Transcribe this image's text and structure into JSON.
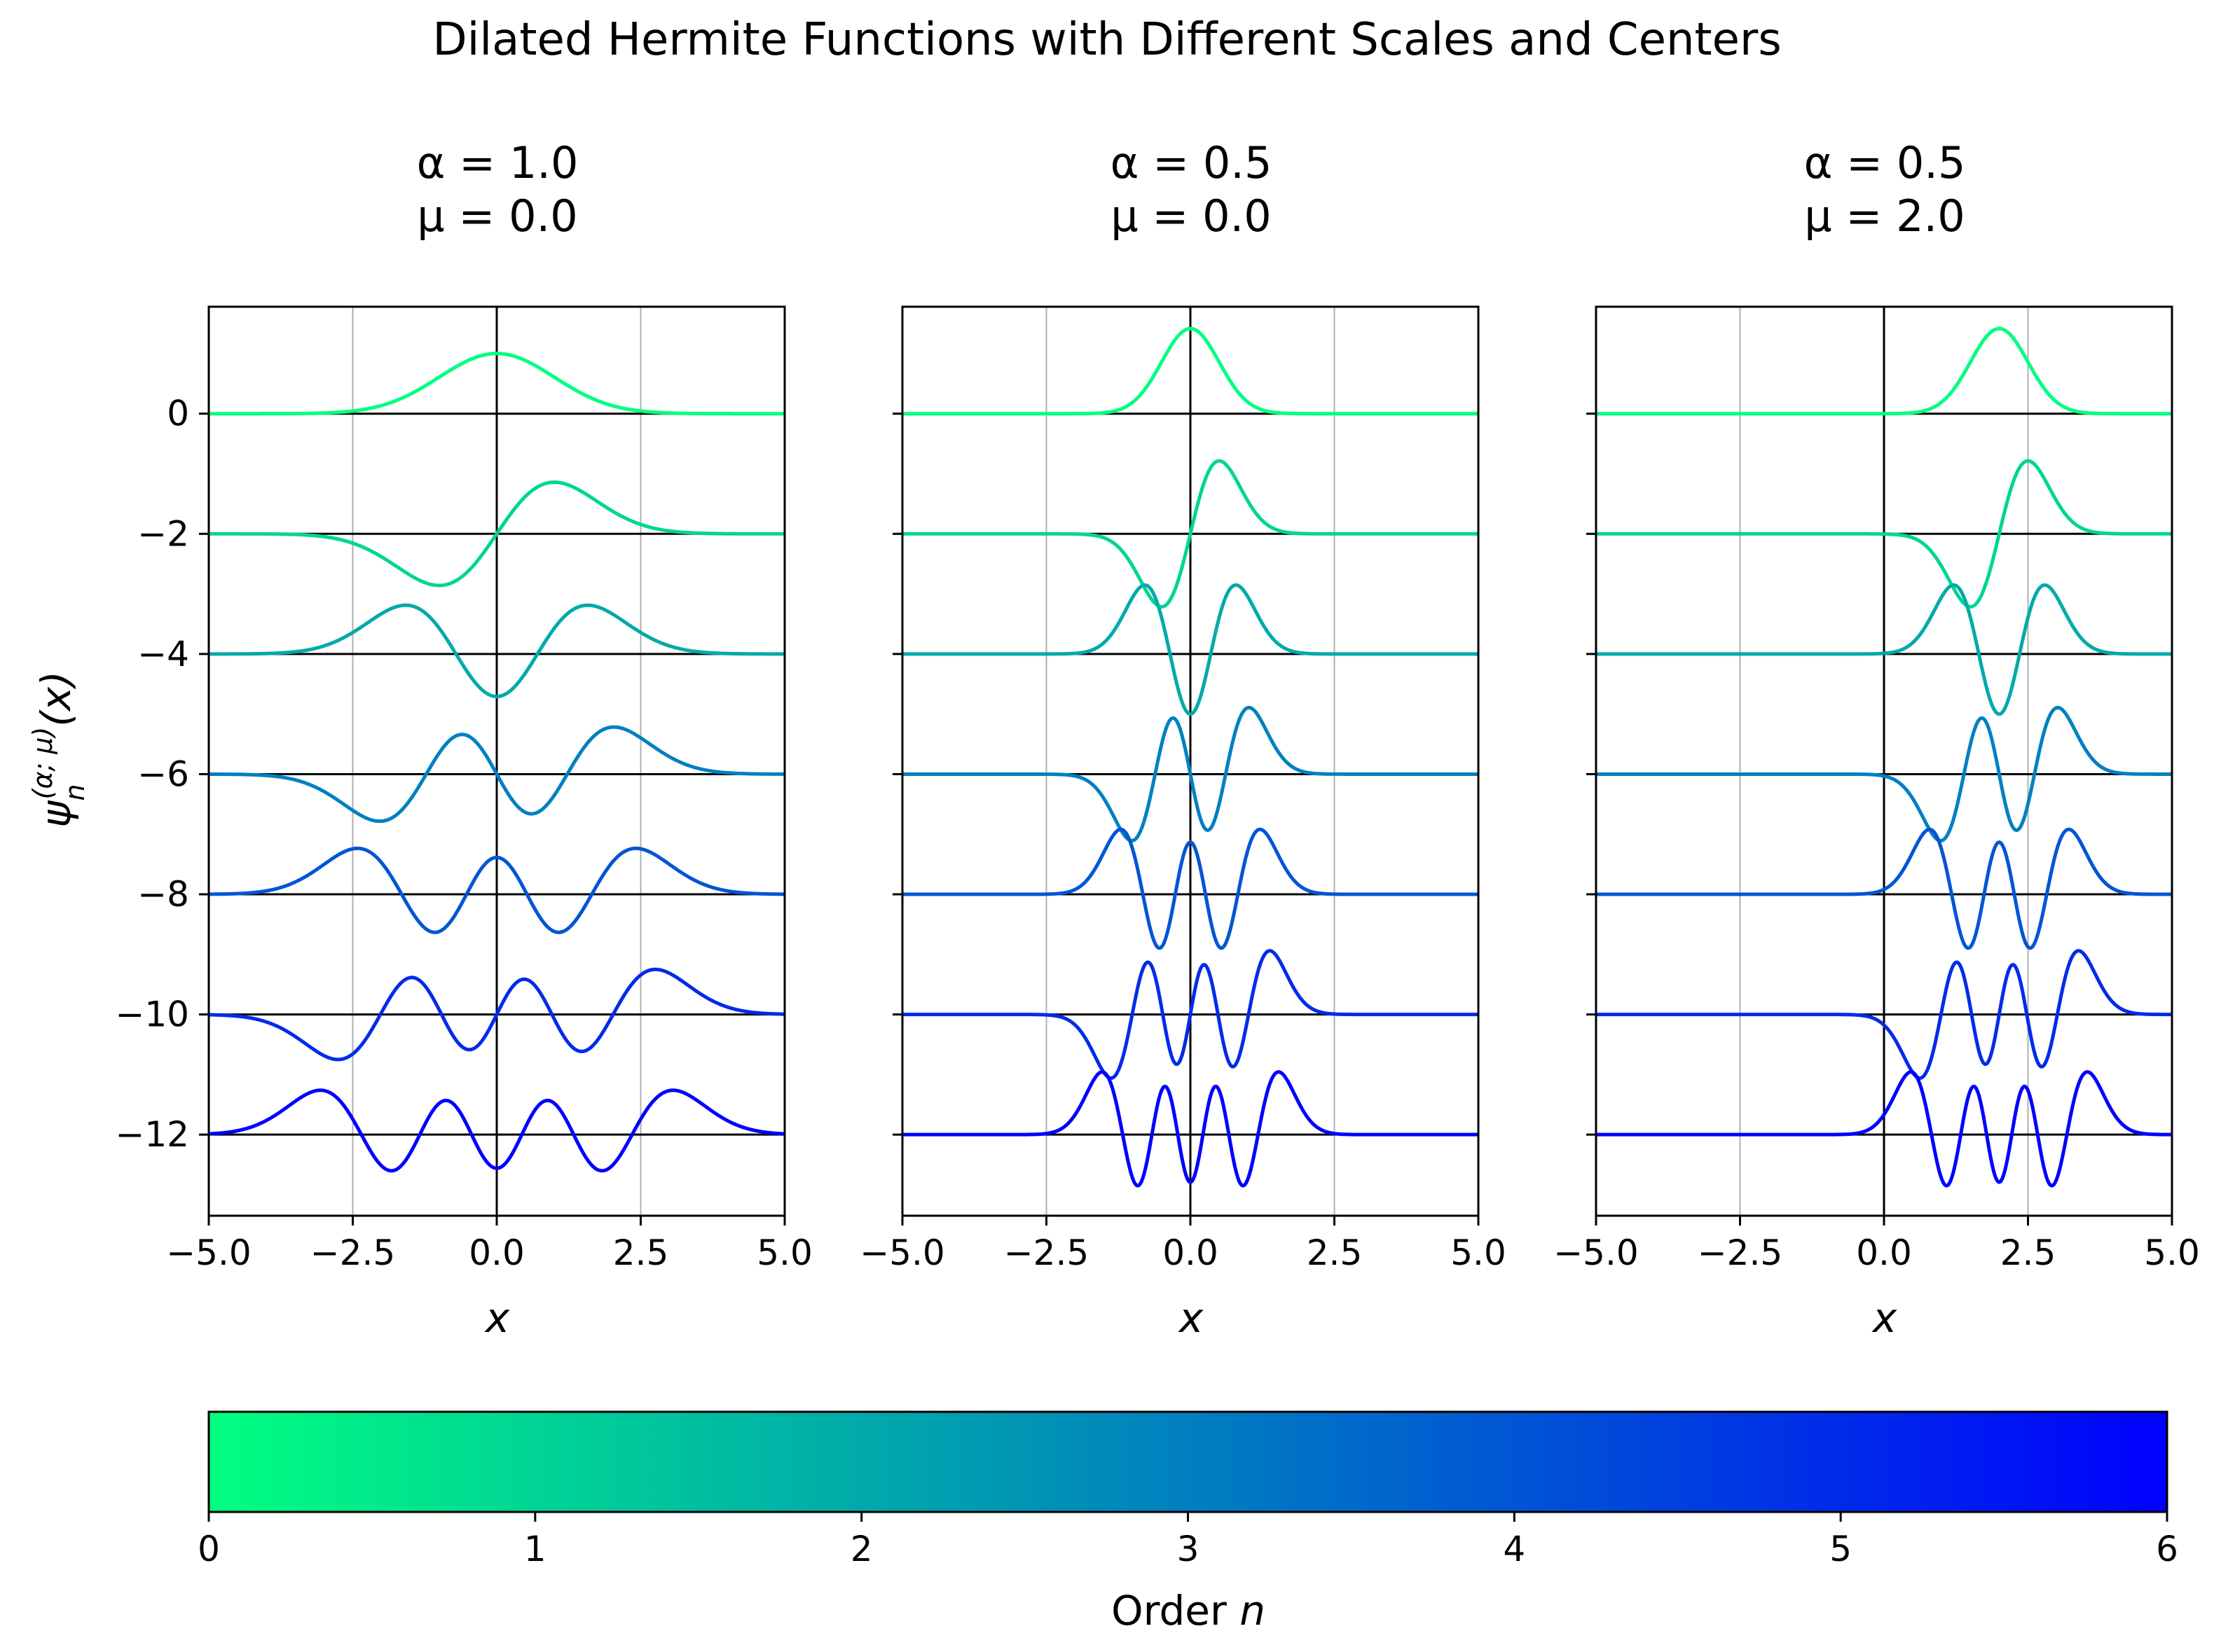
{
  "chart_data": {
    "type": "line",
    "title": "Dilated Hermite Functions with Different Scales and Centers",
    "ylabel": "ψ_n^(α; μ)(x)",
    "ylabel_parts": {
      "main": "ψ",
      "sub": "n",
      "sup": "(α; μ)",
      "arg": "(x)"
    },
    "yticks": [
      0,
      -2,
      -4,
      -6,
      -8,
      -10,
      -12
    ],
    "ytick_labels": [
      "0",
      "−2",
      "−4",
      "−6",
      "−8",
      "−10",
      "−12"
    ],
    "ylim": [
      -13.35,
      1.78
    ],
    "xlim": [
      -5.0,
      5.0
    ],
    "xticks": [
      -5.0,
      -2.5,
      0.0,
      2.5,
      5.0
    ],
    "xtick_labels": [
      "−5.0",
      "−2.5",
      "0.0",
      "2.5",
      "5.0"
    ],
    "grid": "vertical lines at x ticks",
    "orders": [
      0,
      1,
      2,
      3,
      4,
      5,
      6
    ],
    "offset_per_order": -2,
    "amplitude_scale": 1.3333,
    "x_samples": 400,
    "panels": [
      {
        "title_line1": "α = 1.0",
        "title_line2": "μ = 0.0",
        "alpha": 1.0,
        "mu": 0.0,
        "xlabel": "x"
      },
      {
        "title_line1": "α = 0.5",
        "title_line2": "μ = 0.0",
        "alpha": 0.5,
        "mu": 0.0,
        "xlabel": "x"
      },
      {
        "title_line1": "α = 0.5",
        "title_line2": "μ = 2.0",
        "alpha": 0.5,
        "mu": 2.0,
        "xlabel": "x"
      }
    ],
    "colorbar": {
      "label_text": "Order ",
      "label_var": "n",
      "min": 0,
      "max": 6,
      "ticks": [
        0,
        1,
        2,
        3,
        4,
        5,
        6
      ],
      "colormap": "winter",
      "color_start": "#00ff80",
      "color_end": "#0000ff"
    }
  }
}
